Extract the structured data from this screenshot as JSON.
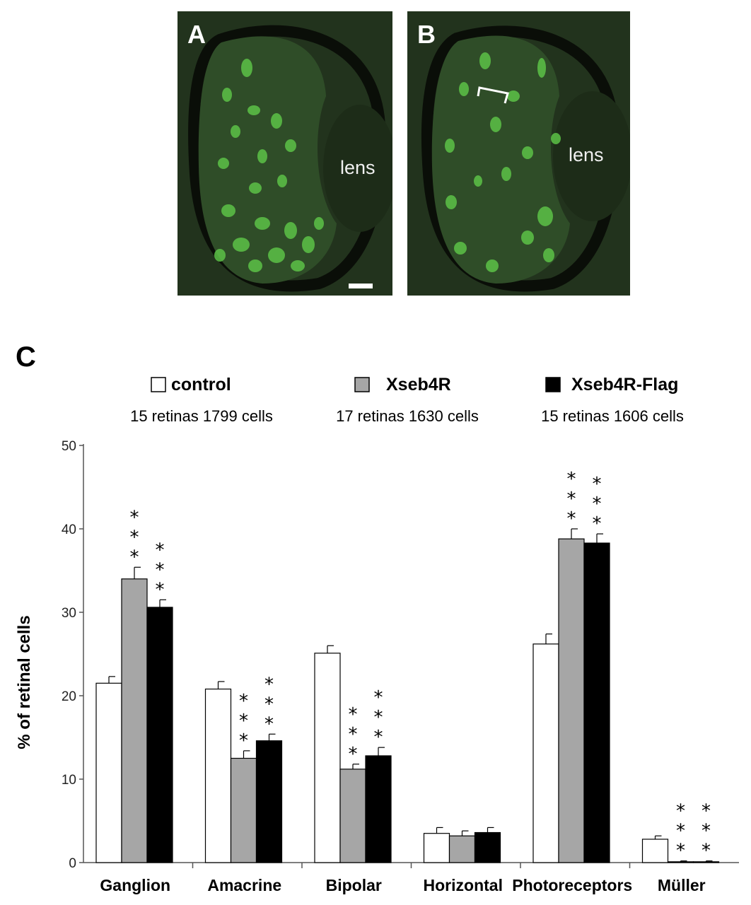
{
  "figure": {
    "panels": [
      {
        "letter": "A",
        "label": "lens"
      },
      {
        "letter": "B",
        "label": "lens"
      }
    ],
    "colors": {
      "tissue": "#2d4a27",
      "cells": "#5cc247",
      "control": "#ffffff",
      "xseb4r": "#a6a6a6",
      "xseb4r_flag": "#000000"
    }
  },
  "chart_data": {
    "type": "bar",
    "panel_letter": "C",
    "ylabel": "% of retinal cells",
    "ylim": [
      0,
      50
    ],
    "yticks": [
      0,
      10,
      20,
      30,
      40,
      50
    ],
    "categories": [
      "Ganglion",
      "Amacrine",
      "Bipolar",
      "Horizontal",
      "Photoreceptors",
      "Müller"
    ],
    "significance_marker": "* * *",
    "series": [
      {
        "name": "control",
        "count": "15 retinas 1799 cells",
        "values": [
          21.5,
          20.8,
          25.1,
          3.5,
          26.2,
          2.8
        ],
        "errors": [
          0.8,
          0.9,
          0.9,
          0.7,
          1.2,
          0.4
        ],
        "significant": [
          false,
          false,
          false,
          false,
          false,
          false
        ]
      },
      {
        "name": "Xseb4R",
        "count": "17 retinas 1630 cells",
        "values": [
          34.0,
          12.5,
          11.2,
          3.2,
          38.8,
          0.1
        ],
        "errors": [
          1.4,
          0.9,
          0.6,
          0.6,
          1.2,
          0.1
        ],
        "significant": [
          true,
          true,
          true,
          false,
          true,
          true
        ]
      },
      {
        "name": "Xseb4R-Flag",
        "count": "15 retinas 1606 cells",
        "values": [
          30.6,
          14.6,
          12.8,
          3.6,
          38.3,
          0.1
        ],
        "errors": [
          0.9,
          0.8,
          1.0,
          0.6,
          1.1,
          0.1
        ],
        "significant": [
          true,
          true,
          true,
          false,
          true,
          true
        ]
      }
    ]
  }
}
